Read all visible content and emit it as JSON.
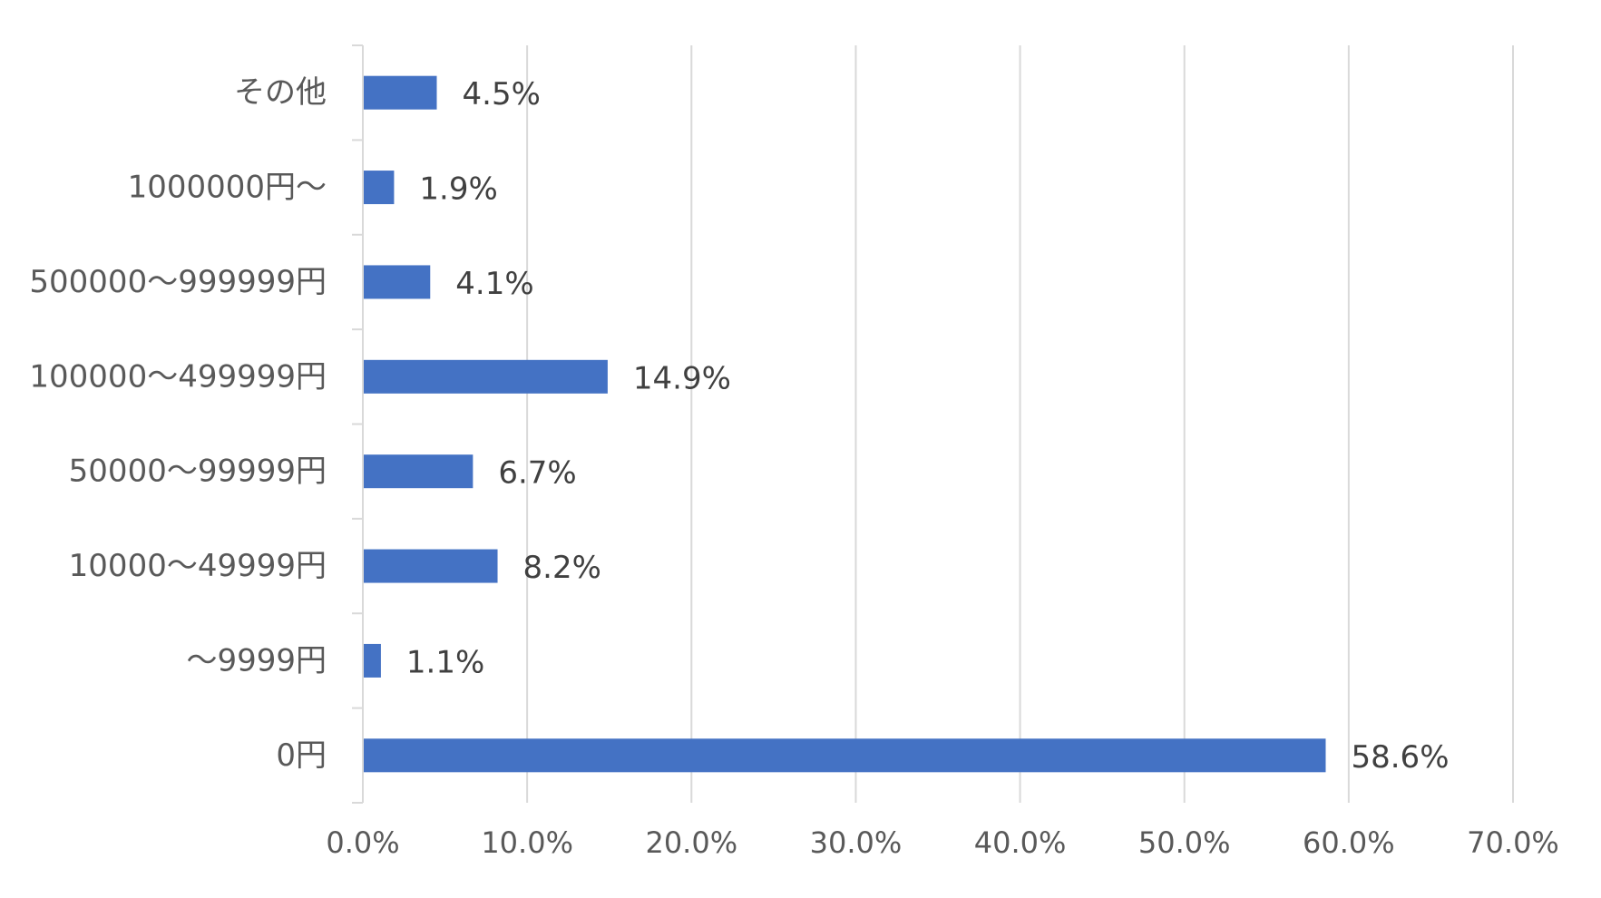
{
  "chart_data": {
    "type": "bar",
    "orientation": "horizontal",
    "categories": [
      "その他",
      "1000000円〜",
      "500000〜999999円",
      "100000〜499999円",
      "50000〜99999円",
      "10000〜49999円",
      "〜9999円",
      "0円"
    ],
    "values": [
      4.5,
      1.9,
      4.1,
      14.9,
      6.7,
      8.2,
      1.1,
      58.6
    ],
    "data_labels": [
      "4.5%",
      "1.9%",
      "4.1%",
      "14.9%",
      "6.7%",
      "8.2%",
      "1.1%",
      "58.6%"
    ],
    "x_ticks": [
      0,
      10,
      20,
      30,
      40,
      50,
      60,
      70
    ],
    "x_tick_labels": [
      "0.0%",
      "10.0%",
      "20.0%",
      "30.0%",
      "40.0%",
      "50.0%",
      "60.0%",
      "70.0%"
    ],
    "xlim": [
      0,
      70
    ],
    "title": "",
    "xlabel": "",
    "ylabel": "",
    "grid": "vertical",
    "legend": "none",
    "bar_color": "#4472c4"
  }
}
